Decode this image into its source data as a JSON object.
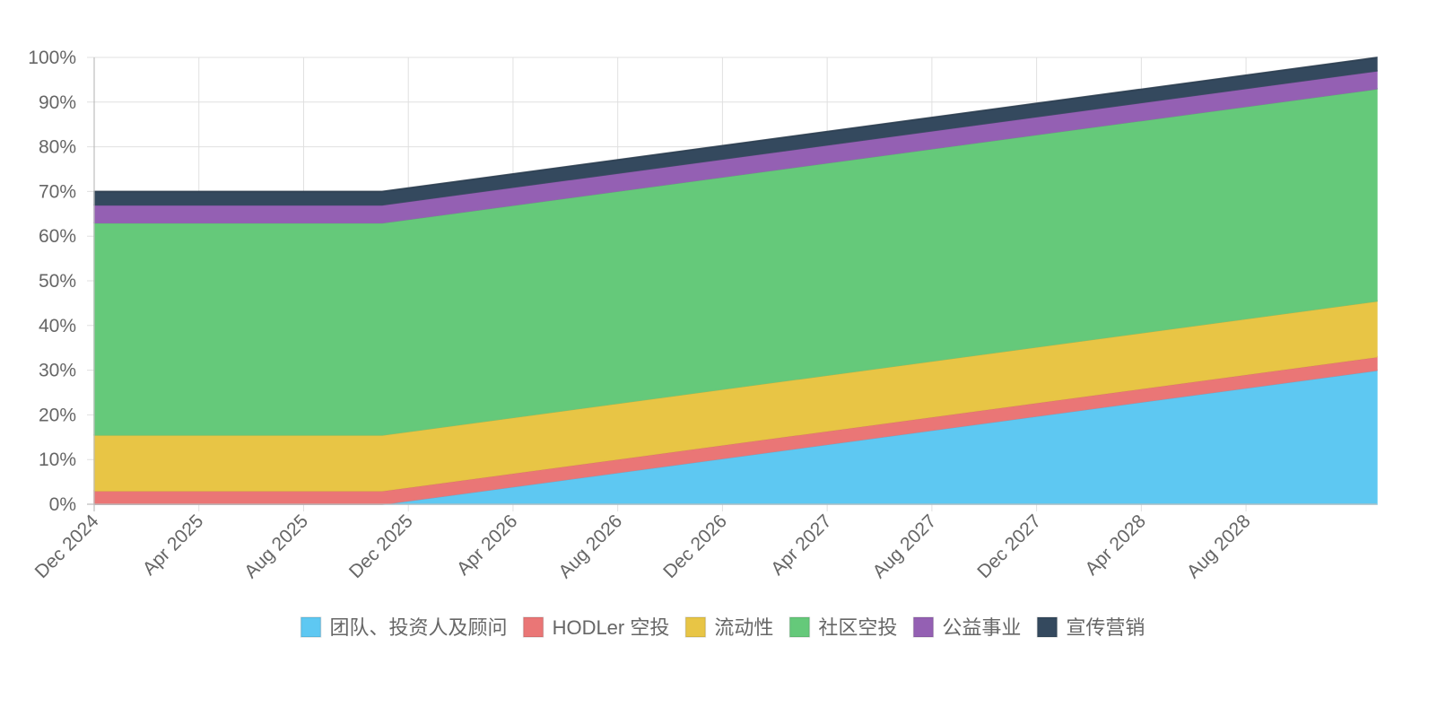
{
  "chart_data": {
    "type": "area",
    "stacked": true,
    "x": [
      "Dec 2024",
      "Nov 2025",
      "Jan 2029"
    ],
    "x_ticks": [
      "Dec 2024",
      "Apr 2025",
      "Aug 2025",
      "Dec 2025",
      "Apr 2026",
      "Aug 2026",
      "Dec 2026",
      "Apr 2027",
      "Aug 2027",
      "Dec 2027",
      "Apr 2028",
      "Aug 2028"
    ],
    "y_ticks": [
      "0%",
      "10%",
      "20%",
      "30%",
      "40%",
      "50%",
      "60%",
      "70%",
      "80%",
      "90%",
      "100%"
    ],
    "ylim": [
      0,
      100
    ],
    "grid": true,
    "legend_position": "bottom",
    "series": [
      {
        "name": "团队、投资人及顾问",
        "color": "#5ec8f2",
        "values": [
          0,
          0,
          30
        ]
      },
      {
        "name": "HODLer 空投",
        "color": "#ea7676",
        "values": [
          3,
          3,
          3
        ]
      },
      {
        "name": "流动性",
        "color": "#e8c545",
        "values": [
          12.5,
          12.5,
          12.5
        ]
      },
      {
        "name": "社区空投",
        "color": "#65c97a",
        "values": [
          47.5,
          47.5,
          47.5
        ]
      },
      {
        "name": "公益事业",
        "color": "#9460b3",
        "values": [
          4,
          4,
          4
        ]
      },
      {
        "name": "宣传营销",
        "color": "#34495e",
        "values": [
          3,
          3,
          3
        ]
      }
    ]
  }
}
